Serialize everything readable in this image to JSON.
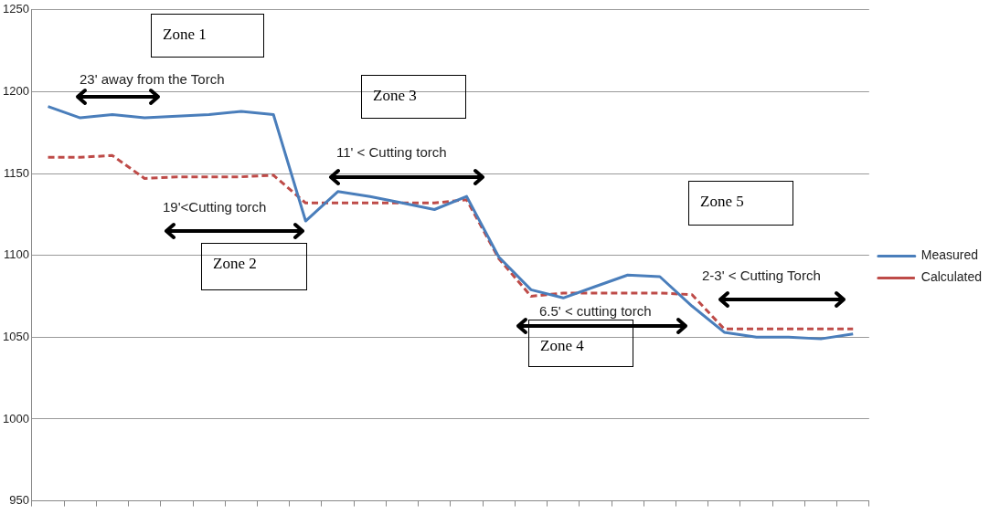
{
  "chart_data": {
    "type": "line",
    "categories": [
      null,
      null,
      null,
      null,
      null,
      null,
      null,
      null,
      null,
      null,
      null,
      null,
      null,
      null,
      null,
      null,
      null,
      null,
      null,
      null,
      null,
      null,
      null,
      null,
      null,
      null
    ],
    "series": [
      {
        "name": "Measured",
        "color": "#4a7ebb",
        "line_style": "solid",
        "values": [
          1191,
          1184,
          1186,
          1184,
          1185,
          1186,
          1188,
          1186,
          1121,
          1139,
          1136,
          1132,
          1128,
          1136,
          1099,
          1079,
          1074,
          1081,
          1088,
          1087,
          1069,
          1053,
          1050,
          1050,
          1049,
          1052
        ]
      },
      {
        "name": "Calculated",
        "color": "#be4b48",
        "line_style": "dashed",
        "values": [
          1160,
          1160,
          1161,
          1147,
          1148,
          1148,
          1148,
          1149,
          1132,
          1132,
          1132,
          1132,
          1132,
          1134,
          1098,
          1075,
          1077,
          1077,
          1077,
          1077,
          1076,
          1055,
          1055,
          1055,
          1055,
          1055
        ]
      }
    ],
    "ylim": [
      950,
      1250
    ],
    "yticks": [
      950,
      1000,
      1050,
      1100,
      1150,
      1200,
      1250
    ],
    "grid": "y",
    "legend": "right",
    "marker": "none",
    "annotations": [
      "Zone 1",
      "23' away from the Torch",
      "Zone 3",
      "11' < Cutting torch",
      "19'<Cutting torch",
      "Zone 2",
      "Zone 5",
      "2-3' < Cutting Torch",
      "6.5' < cutting torch",
      "Zone 4"
    ]
  }
}
